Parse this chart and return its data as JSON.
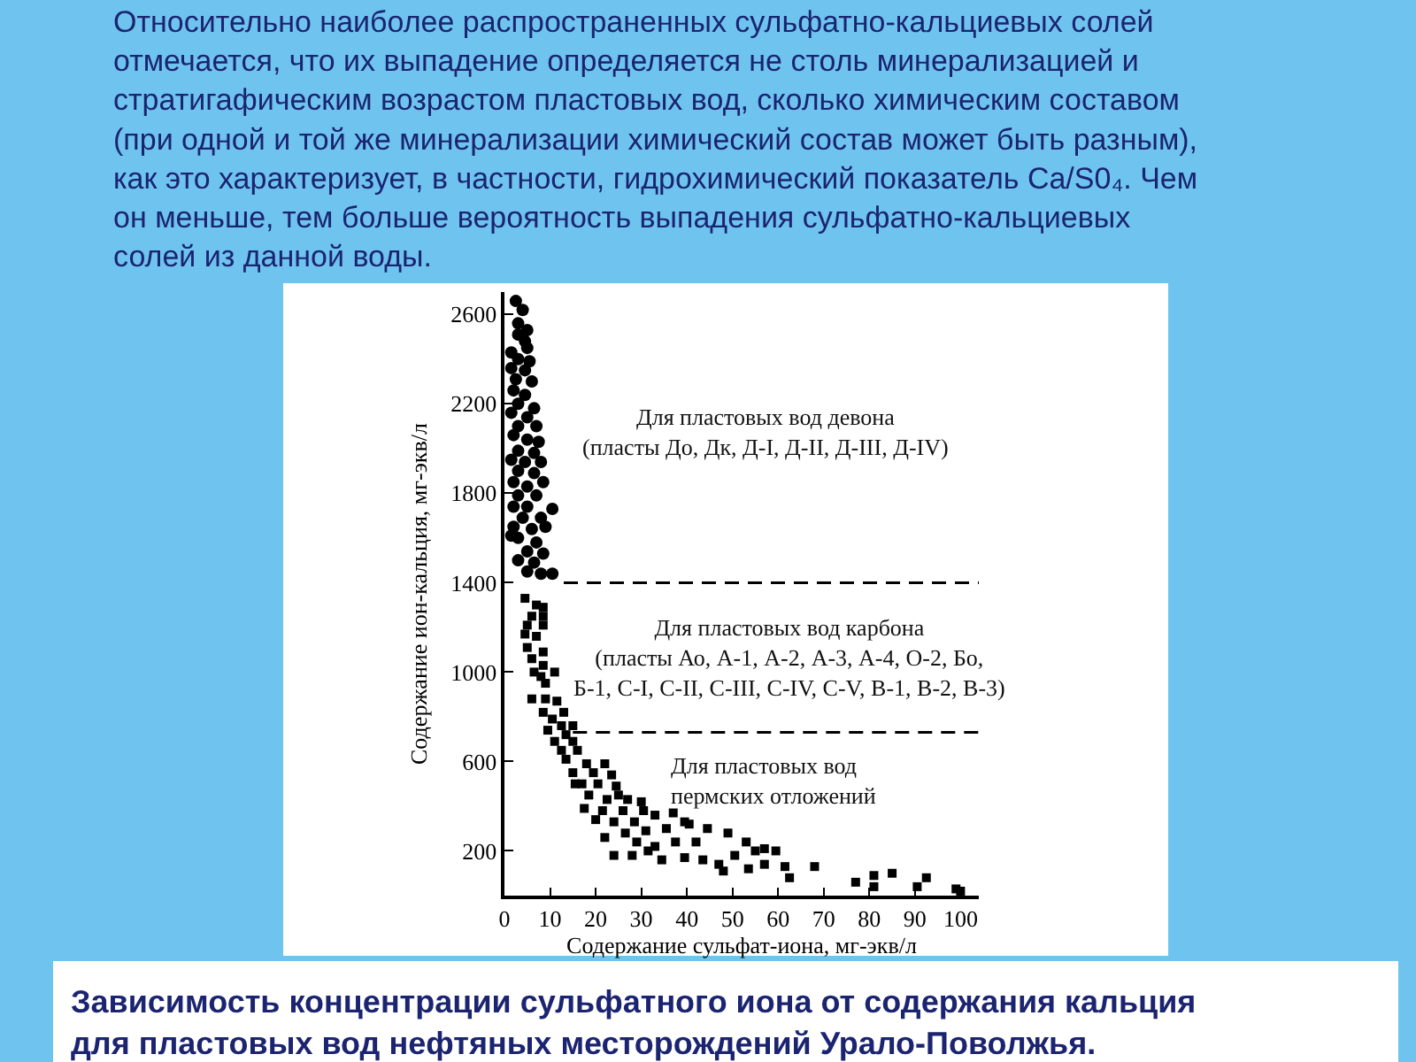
{
  "chart_data": {
    "type": "scatter",
    "title": "Зависимость концентрации сульфатного иона от содержания кальция\nдля пластовых вод нефтяных месторождений Урало-Поволжья.",
    "xlabel": "Содержание сульфат-иона, мг-экв/л",
    "ylabel": "Содержание ион-кальция, мг-экв/л",
    "xlim": [
      0,
      104
    ],
    "ylim": [
      0,
      2700
    ],
    "xticks": [
      0,
      10,
      20,
      30,
      40,
      50,
      60,
      70,
      80,
      90,
      100
    ],
    "yticks": [
      200,
      600,
      1000,
      1400,
      1800,
      2200,
      2600
    ],
    "annotations": [
      "Относительно наиболее распространенных сульфатно-кальциевых солей\nотмечается, что их выпадение определяется не столь минерализацией и\nстратигафическим возрастом пластовых вод, сколько химическим составом\n(при одной и той же минерализации химический состав может быть разным),\nкак это характеризует, в частности, гидрохимический показатель Ca/S0₄. Чем\nон меньше, тем больше вероятность выпадения сульфатно-кальциевых\nсолей из данной воды.",
      "Для пластовых вод девона\n(пласты До, Дк, Д-I, Д-II, Д-III, Д-IV)",
      "Для пластовых вод карбона\n(пласты Ао, А-1, А-2, А-3, А-4, О-2, Бо,\nБ-1, С-I, С-II, С-III, С-IV, С-V, В-1, В-2, В-3)",
      "Для пластовых вод\nпермских отложений"
    ],
    "series": [
      {
        "marker": "circle",
        "color": "#000000",
        "x": [
          2.5,
          4,
          3,
          5,
          3,
          4.5,
          1.5,
          5,
          3,
          5.5,
          1.5,
          4.5,
          2.5,
          6,
          2,
          4.5,
          3,
          6.5,
          1.5,
          5,
          3,
          7,
          2,
          5,
          7.5,
          3,
          6.5,
          1.5,
          4.5,
          8,
          3,
          6.5,
          2,
          5,
          8.5,
          3,
          7,
          2,
          5,
          10.5,
          4,
          8,
          2,
          6,
          9,
          3,
          7,
          1.5,
          5,
          8.5,
          3,
          6.5,
          5,
          8,
          10.5
        ],
        "values": [
          2660,
          2620,
          2560,
          2530,
          2510,
          2480,
          2430,
          2450,
          2400,
          2390,
          2360,
          2350,
          2310,
          2300,
          2260,
          2240,
          2200,
          2180,
          2160,
          2140,
          2100,
          2100,
          2060,
          2040,
          2030,
          1990,
          1980,
          1950,
          1940,
          1940,
          1900,
          1890,
          1850,
          1830,
          1850,
          1790,
          1790,
          1740,
          1740,
          1730,
          1690,
          1690,
          1650,
          1640,
          1650,
          1600,
          1580,
          1610,
          1540,
          1530,
          1500,
          1490,
          1450,
          1440,
          1440
        ]
      },
      {
        "marker": "square",
        "color": "#000000",
        "x": [
          4.5,
          7,
          8.5,
          6,
          8.5,
          5,
          8.5,
          4.5,
          7,
          5,
          8.5,
          6,
          8.5,
          6.5,
          11,
          8,
          9,
          6,
          9,
          11.5,
          8.5,
          13,
          10.5,
          12.5,
          15,
          9.5,
          13.5,
          11,
          15,
          12.5,
          16,
          13.5,
          18,
          22,
          15,
          19.5,
          23.5,
          17,
          20.5,
          24.5,
          18.5,
          22.5,
          27,
          17.5,
          21.5,
          26,
          30.5,
          20,
          24,
          28.5,
          33,
          37,
          22,
          26.5,
          31,
          35.5,
          40.5,
          44.5,
          29,
          33,
          37.5,
          42,
          24,
          28,
          31.5,
          34.5,
          39.5,
          43.5,
          47,
          48,
          15.5,
          25,
          30,
          39.5,
          49,
          53,
          57,
          59.5,
          55,
          50.5,
          53.5,
          57,
          61.5,
          62.5,
          68,
          77,
          81,
          81,
          85,
          92.5,
          90.5,
          99,
          100
        ],
        "values": [
          1330,
          1300,
          1290,
          1250,
          1250,
          1210,
          1210,
          1170,
          1160,
          1110,
          1090,
          1060,
          1030,
          1000,
          1000,
          980,
          950,
          880,
          880,
          870,
          820,
          820,
          790,
          760,
          760,
          740,
          720,
          690,
          690,
          650,
          650,
          610,
          590,
          590,
          550,
          550,
          540,
          500,
          500,
          490,
          450,
          430,
          430,
          390,
          380,
          380,
          380,
          340,
          330,
          330,
          360,
          370,
          260,
          280,
          290,
          300,
          320,
          300,
          240,
          220,
          240,
          240,
          180,
          180,
          200,
          160,
          170,
          160,
          140,
          110,
          500,
          450,
          420,
          330,
          280,
          240,
          210,
          200,
          200,
          180,
          120,
          140,
          130,
          80,
          130,
          60,
          90,
          40,
          100,
          80,
          40,
          30,
          20
        ]
      },
      {
        "type": "line",
        "marker": "none",
        "line_style": "dashed",
        "color": "#000000",
        "x": [
          13,
          104
        ],
        "values": [
          1400,
          1400
        ]
      },
      {
        "type": "line",
        "marker": "none",
        "line_style": "dashed",
        "color": "#000000",
        "x": [
          15,
          104
        ],
        "values": [
          730,
          730
        ]
      }
    ]
  }
}
